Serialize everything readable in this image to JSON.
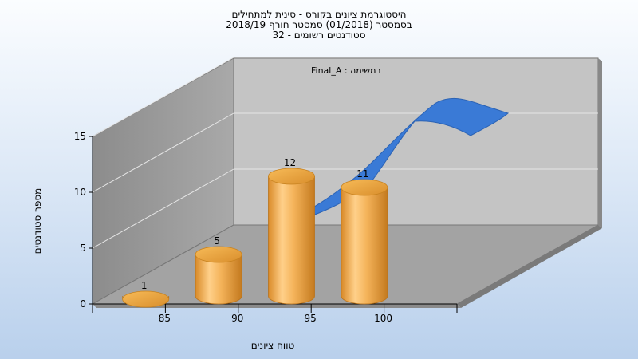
{
  "chart_data": {
    "type": "bar",
    "title_lines": [
      "היסטוגרמת ציונים בקורס - סינית למתחילים",
      "בסמסטר  (01/2018)  סמסטר חורף 2018/19",
      "סטודנטים רשומים - 32"
    ],
    "categories": [
      "85",
      "90",
      "95",
      "100"
    ],
    "values": [
      1,
      5,
      12,
      11
    ],
    "xlabel": "טווח ציונים",
    "ylabel": "מספר סטודנטים",
    "ylim": [
      0,
      15
    ],
    "yticks": [
      0,
      5,
      10,
      15
    ],
    "series_label_prefix": "במשימה :",
    "series_label_name": "Final_A",
    "bar_color": "#f0a843",
    "curve_color": "#3a7ad6",
    "grid": true
  }
}
